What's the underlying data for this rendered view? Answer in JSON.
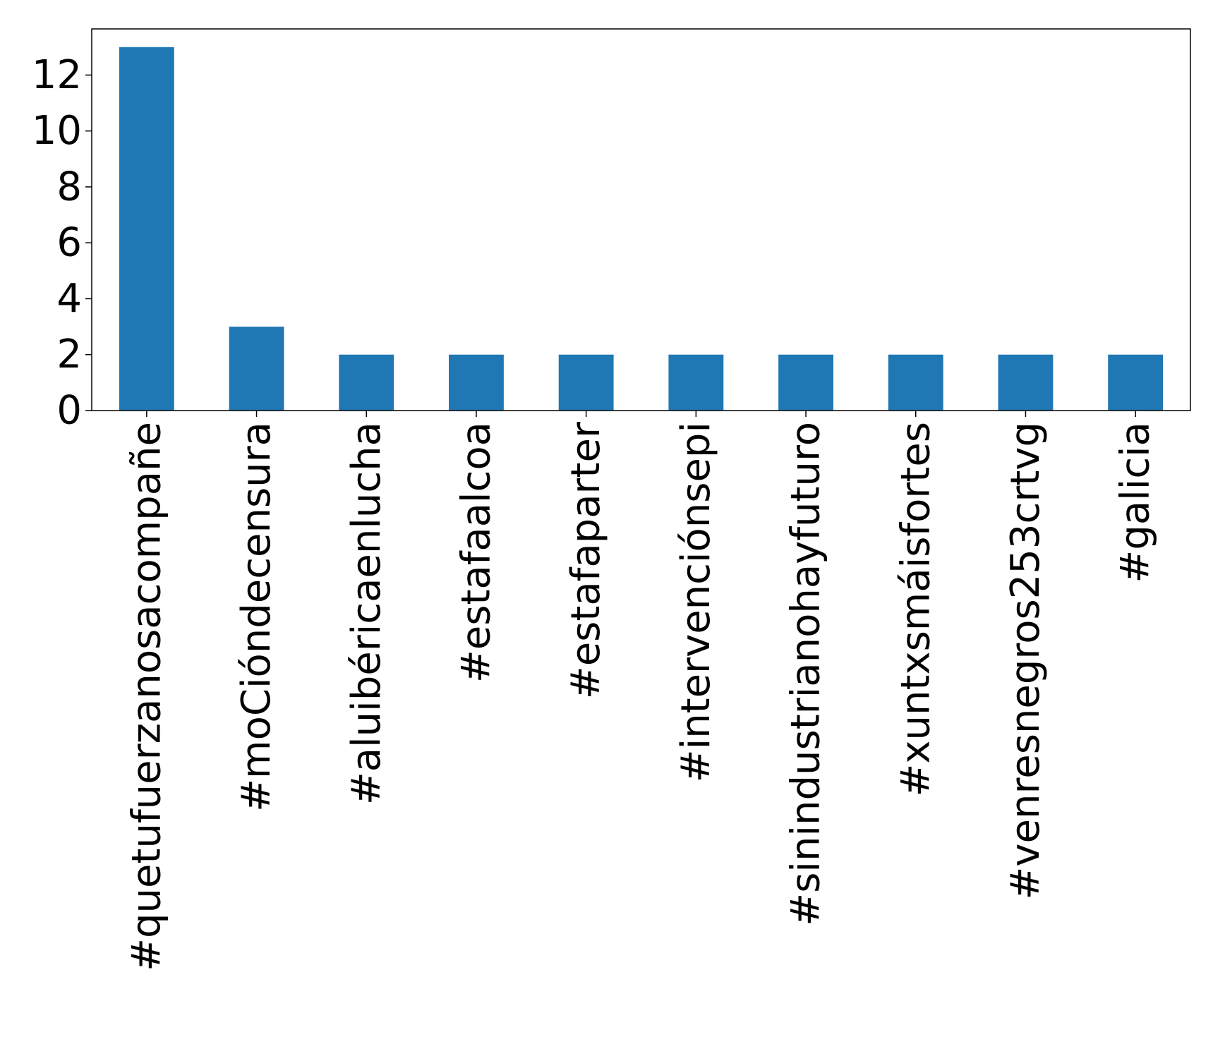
{
  "chart_data": {
    "type": "bar",
    "title": "",
    "xlabel": "",
    "ylabel": "",
    "categories": [
      "#quetufuerzanosacompañe",
      "#moCióndecensura",
      "#aluibéricaenlucha",
      "#estafaalcoa",
      "#estafaparter",
      "#intervenciónsepi",
      "#sinindustrianohayfuturo",
      "#xuntxsmáisfortes",
      "#venresnegros253crtvg",
      "#galicia"
    ],
    "values": [
      13,
      3,
      2,
      2,
      2,
      2,
      2,
      2,
      2,
      2
    ],
    "ylim": [
      0,
      13.65
    ],
    "yticks": [
      0,
      2,
      4,
      6,
      8,
      10,
      12
    ],
    "grid": false,
    "legend": "none",
    "colors": {
      "bar": "#1f77b4",
      "axis": "#000000",
      "background": "#ffffff"
    }
  }
}
